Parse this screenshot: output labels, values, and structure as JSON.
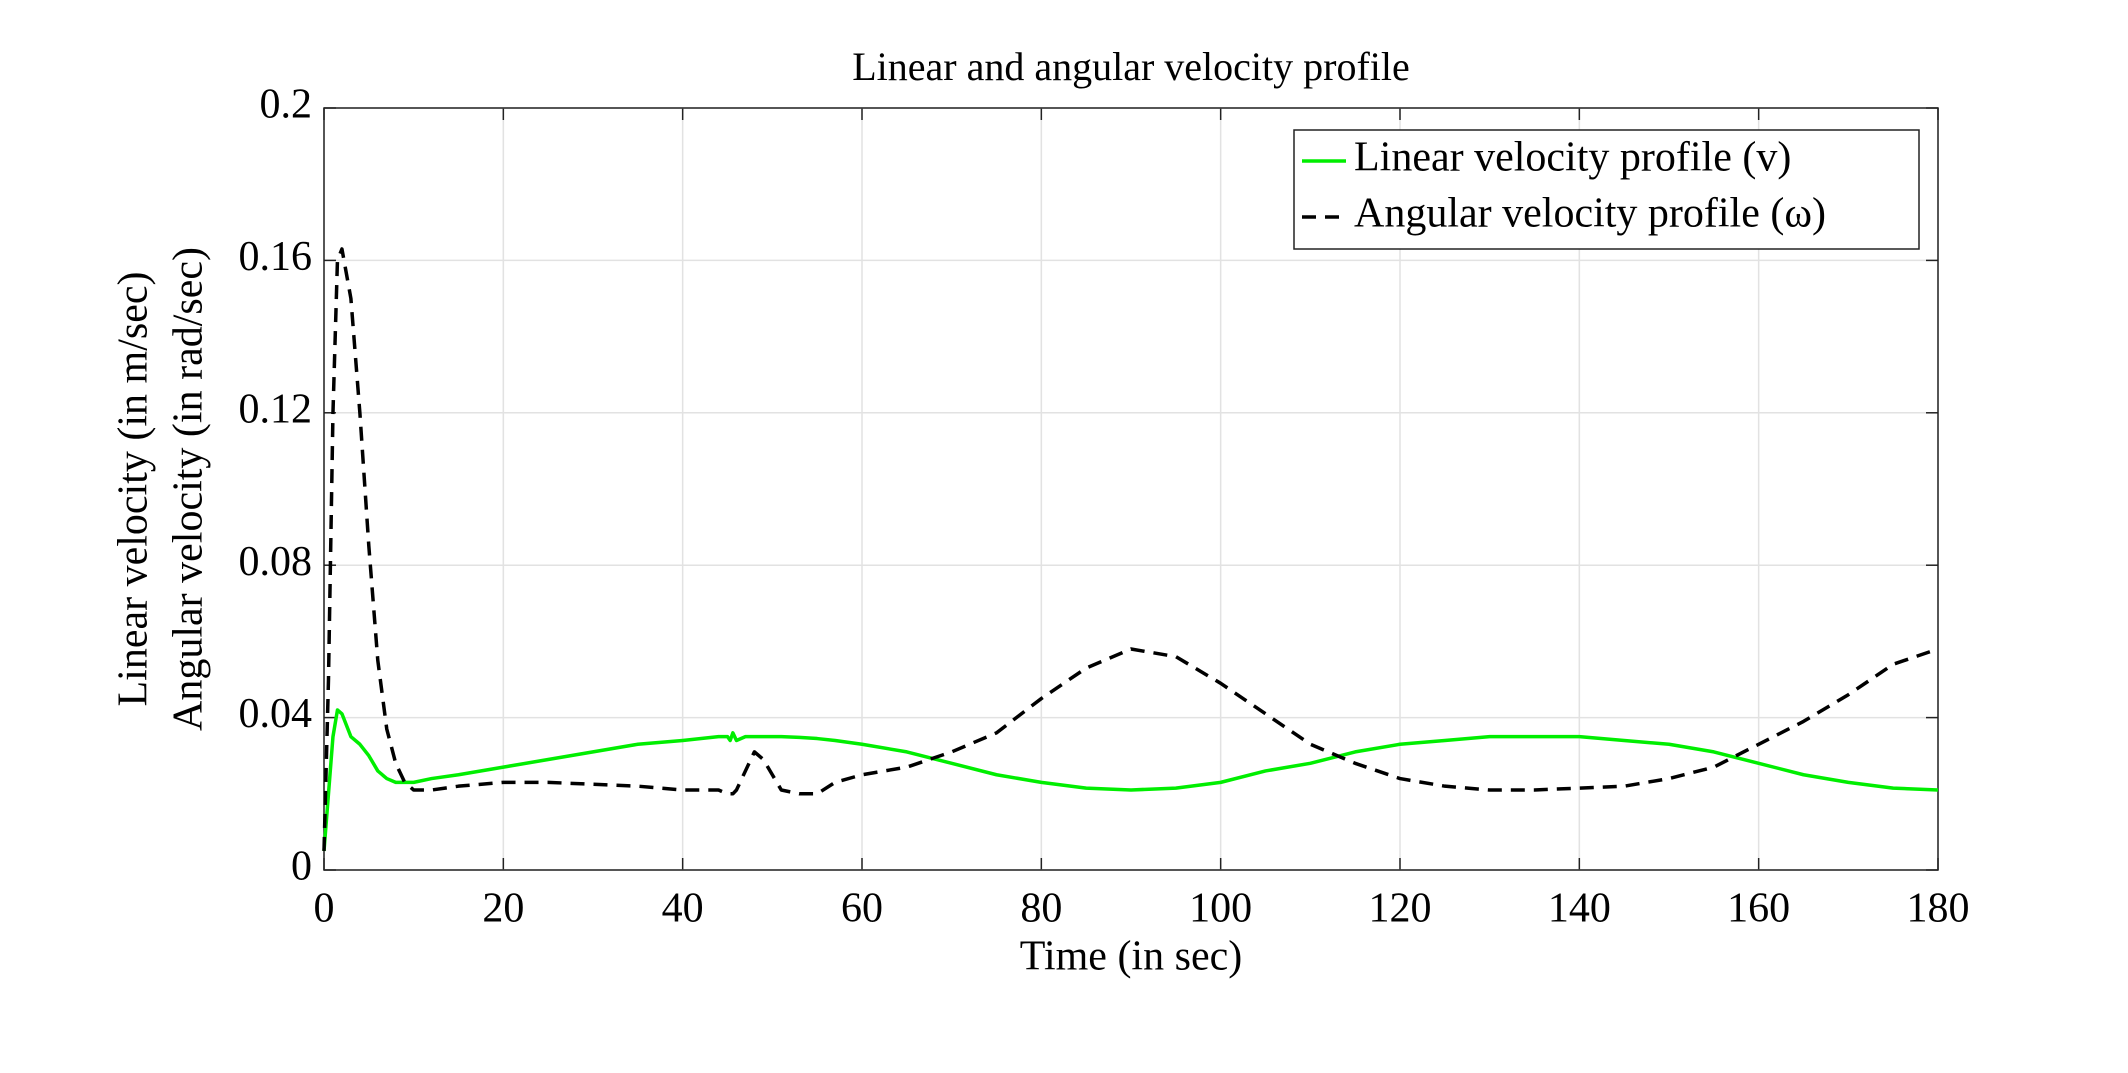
{
  "chart_data": {
    "type": "line",
    "title": "Linear and angular velocity profile",
    "xlabel": "Time (in sec)",
    "ylabel": [
      "Linear velocity (in m/sec)",
      "Angular velocity (in rad/sec)"
    ],
    "x": [
      0,
      0.5,
      1,
      1.5,
      2,
      3,
      4,
      5,
      6,
      7,
      8,
      9,
      10,
      12,
      15,
      20,
      25,
      30,
      35,
      40,
      44,
      45,
      45.3,
      45.6,
      46,
      47,
      48,
      49,
      50,
      51,
      53,
      55,
      57,
      60,
      65,
      70,
      75,
      80,
      85,
      90,
      95,
      100,
      105,
      110,
      115,
      120,
      125,
      130,
      135,
      140,
      145,
      150,
      155,
      160,
      165,
      170,
      175,
      180
    ],
    "series": [
      {
        "name": "Linear velocity profile (v)",
        "color": "#00ee00",
        "linestyle": "solid",
        "values": [
          0.005,
          0.02,
          0.035,
          0.042,
          0.041,
          0.035,
          0.033,
          0.03,
          0.026,
          0.024,
          0.023,
          0.023,
          0.023,
          0.024,
          0.025,
          0.027,
          0.029,
          0.031,
          0.033,
          0.034,
          0.035,
          0.035,
          0.034,
          0.036,
          0.034,
          0.035,
          0.035,
          0.035,
          0.035,
          0.035,
          0.0348,
          0.0345,
          0.034,
          0.033,
          0.031,
          0.028,
          0.025,
          0.023,
          0.0215,
          0.021,
          0.0215,
          0.023,
          0.026,
          0.028,
          0.031,
          0.033,
          0.034,
          0.035,
          0.035,
          0.035,
          0.034,
          0.033,
          0.031,
          0.028,
          0.025,
          0.023,
          0.0215,
          0.021
        ]
      },
      {
        "name": "Angular velocity profile (ω)",
        "color": "#000000",
        "linestyle": "dashed",
        "values": [
          0.005,
          0.05,
          0.12,
          0.16,
          0.163,
          0.15,
          0.12,
          0.085,
          0.055,
          0.037,
          0.028,
          0.023,
          0.021,
          0.021,
          0.022,
          0.023,
          0.023,
          0.0225,
          0.022,
          0.021,
          0.021,
          0.02,
          0.02,
          0.02,
          0.021,
          0.026,
          0.031,
          0.029,
          0.025,
          0.021,
          0.02,
          0.02,
          0.023,
          0.025,
          0.027,
          0.031,
          0.036,
          0.045,
          0.053,
          0.058,
          0.056,
          0.049,
          0.041,
          0.033,
          0.028,
          0.024,
          0.022,
          0.021,
          0.021,
          0.0215,
          0.022,
          0.024,
          0.027,
          0.033,
          0.039,
          0.046,
          0.054,
          0.058
        ]
      }
    ],
    "xlim": [
      0,
      180
    ],
    "xticks": [
      0,
      20,
      40,
      60,
      80,
      100,
      120,
      140,
      160,
      180
    ],
    "ylim": [
      0,
      0.2
    ],
    "yticks": [
      0,
      0.04,
      0.08,
      0.12,
      0.16,
      0.2
    ],
    "grid": true,
    "legend": "upper right"
  }
}
